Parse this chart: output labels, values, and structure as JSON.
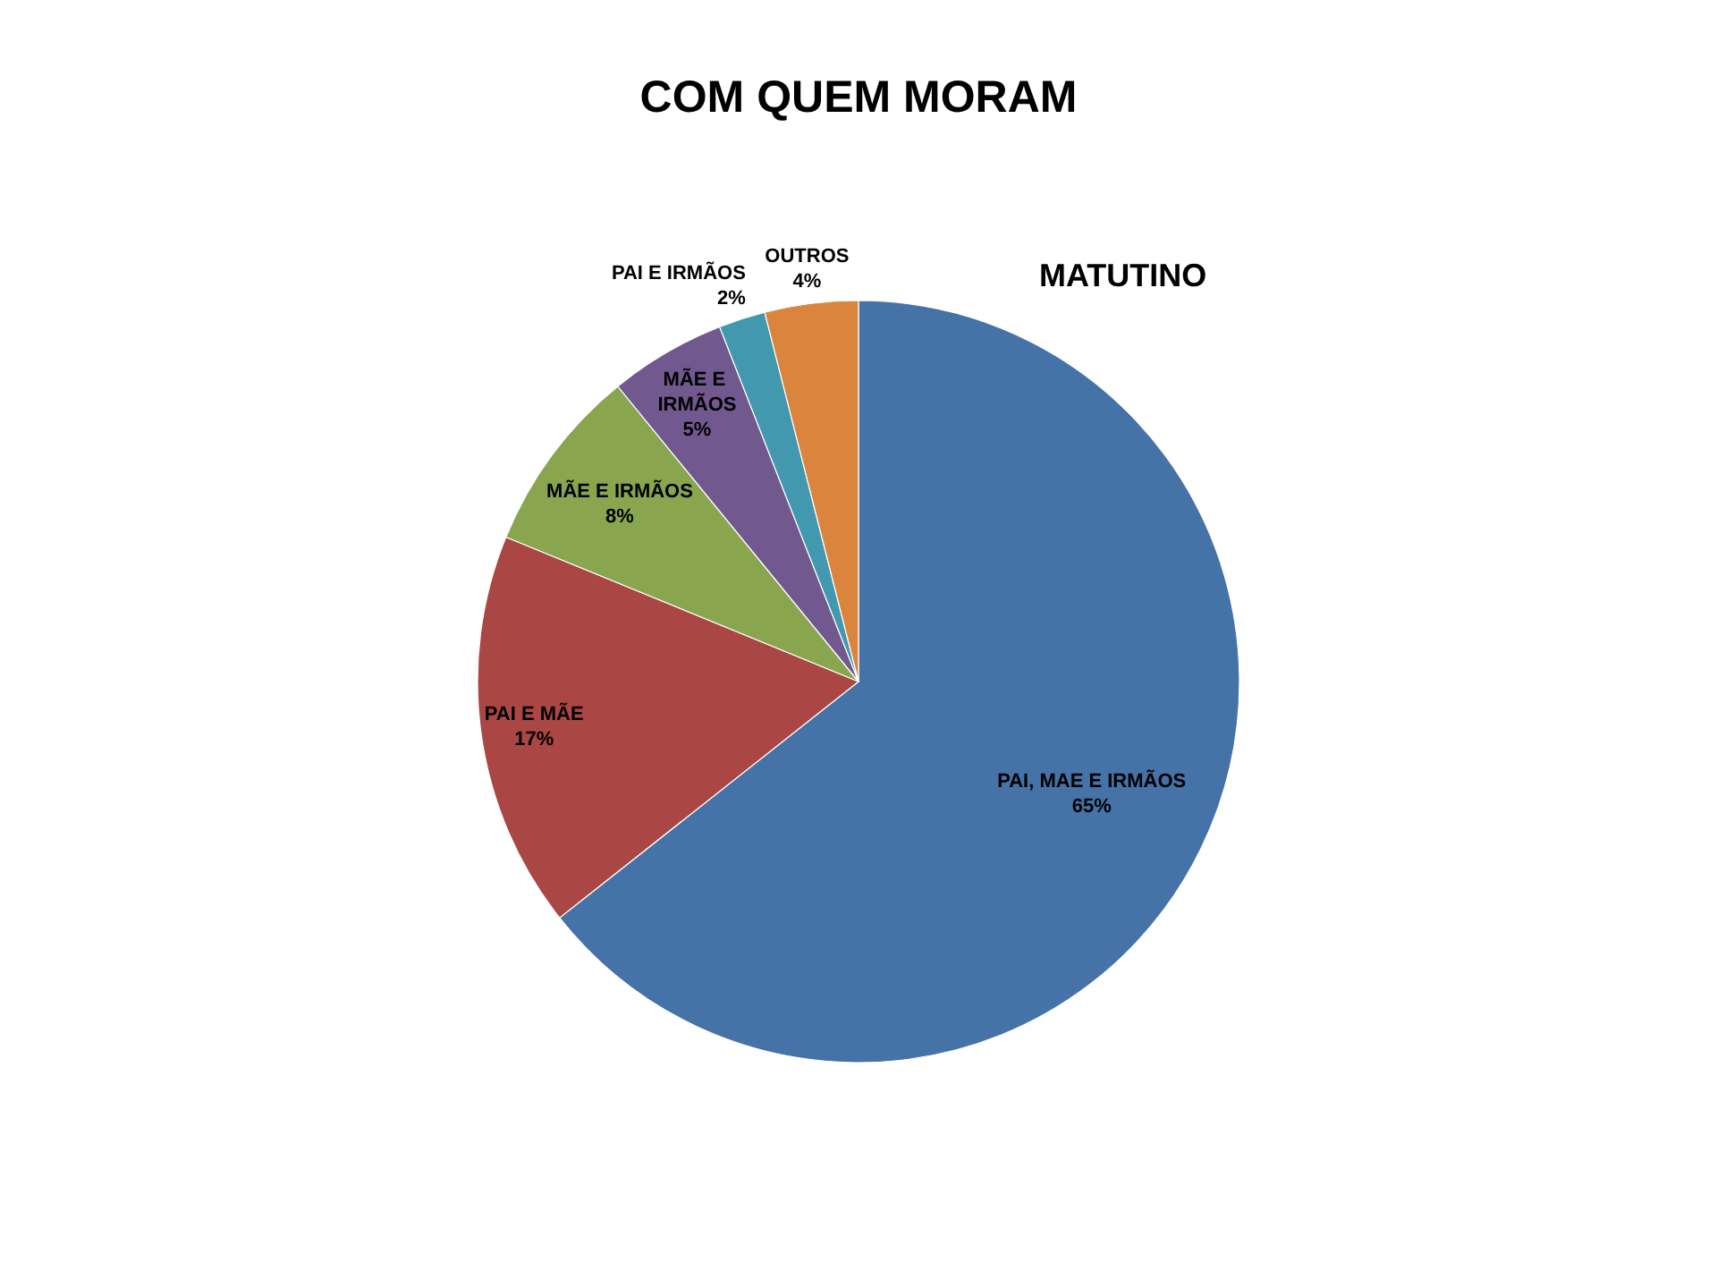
{
  "chart_data": {
    "type": "pie",
    "title": "COM QUEM MORAM",
    "subtitle": "MATUTINO",
    "categories": [
      "PAI, MAE E IRMÃOS",
      "PAI E MÃE",
      "MÃE E IRMÃOS",
      "MÃE E IRMÃOS",
      "PAI E IRMÃOS",
      "OUTROS"
    ],
    "values": [
      65,
      17,
      8,
      5,
      2,
      4
    ],
    "value_labels": [
      "65%",
      "17%",
      "8%",
      "5%",
      "2%",
      "4%"
    ],
    "colors": [
      "#4572a7",
      "#aa4643",
      "#89a54e",
      "#71588f",
      "#4198af",
      "#db843d"
    ],
    "legend": false
  }
}
